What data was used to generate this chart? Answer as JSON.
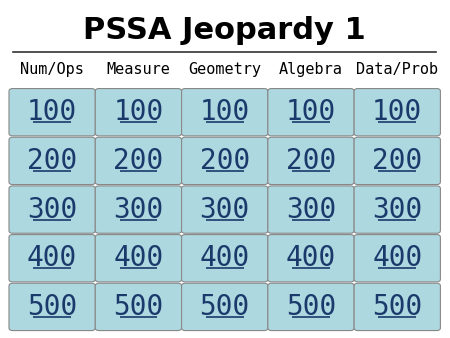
{
  "title": "PSSA Jeopardy 1",
  "categories": [
    "Num/Ops",
    "Measure",
    "Geometry",
    "Algebra",
    "Data/Prob"
  ],
  "values": [
    100,
    200,
    300,
    400,
    500
  ],
  "bg_color": "#ffffff",
  "cell_color": "#aed8e0",
  "text_color": "#1a3a6b",
  "title_color": "#000000",
  "cat_color": "#000000",
  "line_color": "#333333",
  "underline_color": "#1a3a6b",
  "title_fontsize": 22,
  "cat_fontsize": 11,
  "val_fontsize": 20,
  "n_cols": 5,
  "n_rows": 5,
  "fig_width": 4.5,
  "fig_height": 3.38
}
